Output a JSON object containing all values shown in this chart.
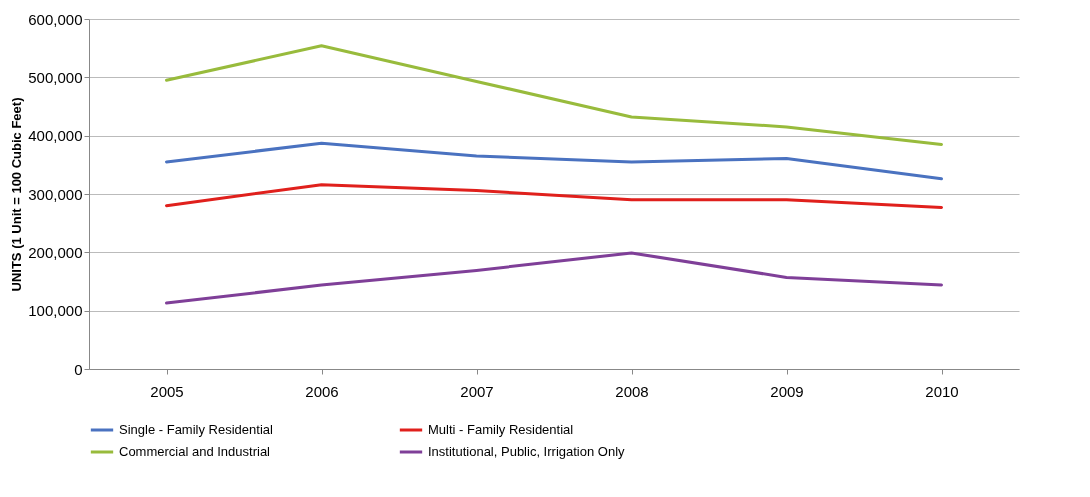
{
  "chart_data": {
    "type": "line",
    "ylabel": "UNITS (1 Unit = 100 Cubic Feet)",
    "categories": [
      "2005",
      "2006",
      "2007",
      "2008",
      "2009",
      "2010"
    ],
    "series": [
      {
        "name": "Single - Family Residential",
        "color": "#4a72c0",
        "values": [
          355000,
          387000,
          365000,
          355000,
          361000,
          326000
        ]
      },
      {
        "name": "Multi - Family Residential",
        "color": "#e0201c",
        "values": [
          280000,
          316000,
          306000,
          290000,
          290000,
          277000
        ]
      },
      {
        "name": "Commercial and Industrial",
        "color": "#98bb3c",
        "values": [
          495000,
          554000,
          493000,
          432000,
          415000,
          385000
        ]
      },
      {
        "name": "Institutional, Public, Irrigation Only",
        "color": "#7f3f98",
        "values": [
          113000,
          144000,
          169000,
          199000,
          157000,
          144000
        ]
      }
    ],
    "ylim": [
      0,
      600000
    ],
    "yticks": [
      0,
      {
        "value": 100000,
        "label": "100,000"
      },
      {
        "value": 200000,
        "label": "200,000"
      },
      {
        "value": 300000,
        "label": "300,000"
      },
      {
        "value": 400000,
        "label": "400,000"
      },
      {
        "value": 500000,
        "label": "500,000"
      },
      {
        "value": 600000,
        "label": "600,000"
      }
    ],
    "grid": "y",
    "legend": "bottom"
  }
}
